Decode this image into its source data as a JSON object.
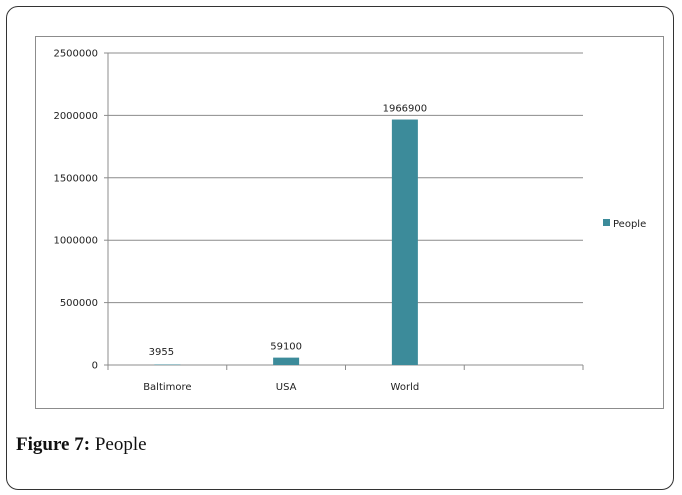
{
  "caption": {
    "label": "Figure 7:",
    "text": "People"
  },
  "chart_data": {
    "type": "bar",
    "categories": [
      "Baltimore",
      "USA",
      "World",
      ""
    ],
    "series": [
      {
        "name": "People",
        "values": [
          3955,
          59100,
          1966900,
          null
        ],
        "color": "#3c8b9a"
      }
    ],
    "data_labels": [
      "3955",
      "59100",
      "1966900"
    ],
    "ylim": [
      0,
      2500000
    ],
    "yticks": [
      0,
      500000,
      1000000,
      1500000,
      2000000,
      2500000
    ],
    "ytick_labels": [
      "0",
      "500000",
      "1000000",
      "1500000",
      "2000000",
      "2500000"
    ],
    "grid": true,
    "legend": {
      "position": "right",
      "entries": [
        "People"
      ]
    },
    "title": "",
    "xlabel": "",
    "ylabel": ""
  }
}
